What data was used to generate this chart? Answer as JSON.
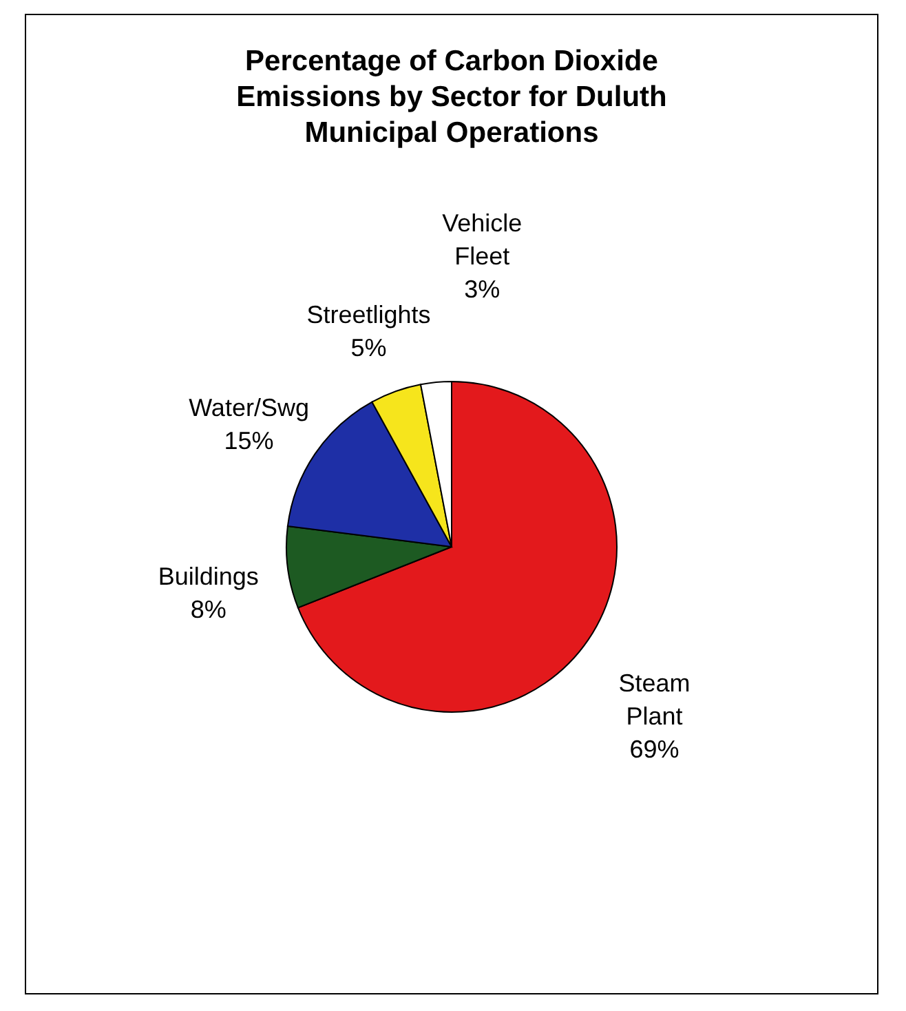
{
  "chart_data": {
    "type": "pie",
    "title": "Percentage of Carbon Dioxide Emissions by Sector for Duluth Municipal Operations",
    "categories": [
      "Steam Plant",
      "Buildings",
      "Water/Swg",
      "Streetlights",
      "Vehicle Fleet"
    ],
    "values": [
      69,
      8,
      15,
      5,
      3
    ],
    "value_labels": [
      "69%",
      "8%",
      "15%",
      "5%",
      "3%"
    ],
    "colors": [
      "#e3191c",
      "#1d5a22",
      "#1e2fa6",
      "#f6e51c",
      "#ffffff"
    ],
    "legend": false
  }
}
